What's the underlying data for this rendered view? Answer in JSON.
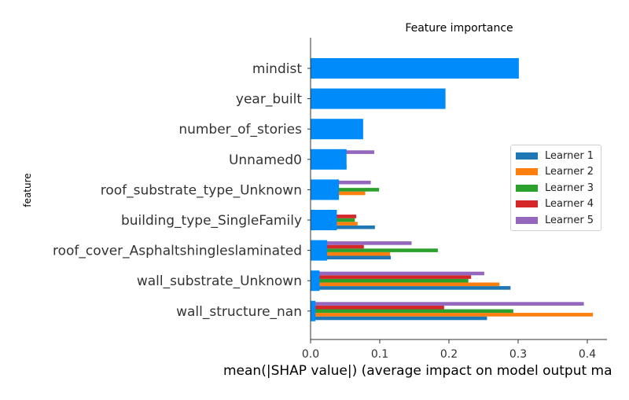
{
  "chart_data": {
    "type": "bar",
    "orientation": "horizontal",
    "title": "Feature importance",
    "xlabel": "mean(|SHAP value|) (average impact on model output ma",
    "ylabel": "feature",
    "xlim": [
      0,
      0.43
    ],
    "xticks": [
      "0.0",
      "0.1",
      "0.2",
      "0.3",
      "0.4"
    ],
    "categories": [
      "mindist",
      "year_built",
      "number_of_stories",
      "Unnamed0",
      "roof_substrate_type_Unknown",
      "building_type_SingleFamily",
      "roof_cover_Asphaltshingleslaminated",
      "wall_substrate_Unknown",
      "wall_structure_nan"
    ],
    "overall": {
      "color": "#008bfb",
      "values": [
        0.301,
        0.195,
        0.076,
        0.052,
        0.041,
        0.038,
        0.024,
        0.013,
        0.007
      ]
    },
    "series": [
      {
        "name": "Learner 1",
        "color": "#1f77b4",
        "values": [
          0.0,
          0.0,
          0.0,
          0.052,
          0.0,
          0.093,
          0.116,
          0.289,
          0.255
        ]
      },
      {
        "name": "Learner 2",
        "color": "#ff7f0e",
        "values": [
          0.0,
          0.0,
          0.0,
          0.0,
          0.079,
          0.068,
          0.115,
          0.273,
          0.408
        ]
      },
      {
        "name": "Learner 3",
        "color": "#2ca02c",
        "values": [
          0.0,
          0.0,
          0.0,
          0.0,
          0.099,
          0.064,
          0.184,
          0.228,
          0.293
        ]
      },
      {
        "name": "Learner 4",
        "color": "#d62728",
        "values": [
          0.0,
          0.0,
          0.0,
          0.0,
          0.0,
          0.066,
          0.077,
          0.232,
          0.193
        ]
      },
      {
        "name": "Learner 5",
        "color": "#9467bd",
        "values": [
          0.0,
          0.0,
          0.0,
          0.092,
          0.087,
          0.0,
          0.146,
          0.251,
          0.395
        ]
      }
    ],
    "legend": "right",
    "grid": false
  }
}
